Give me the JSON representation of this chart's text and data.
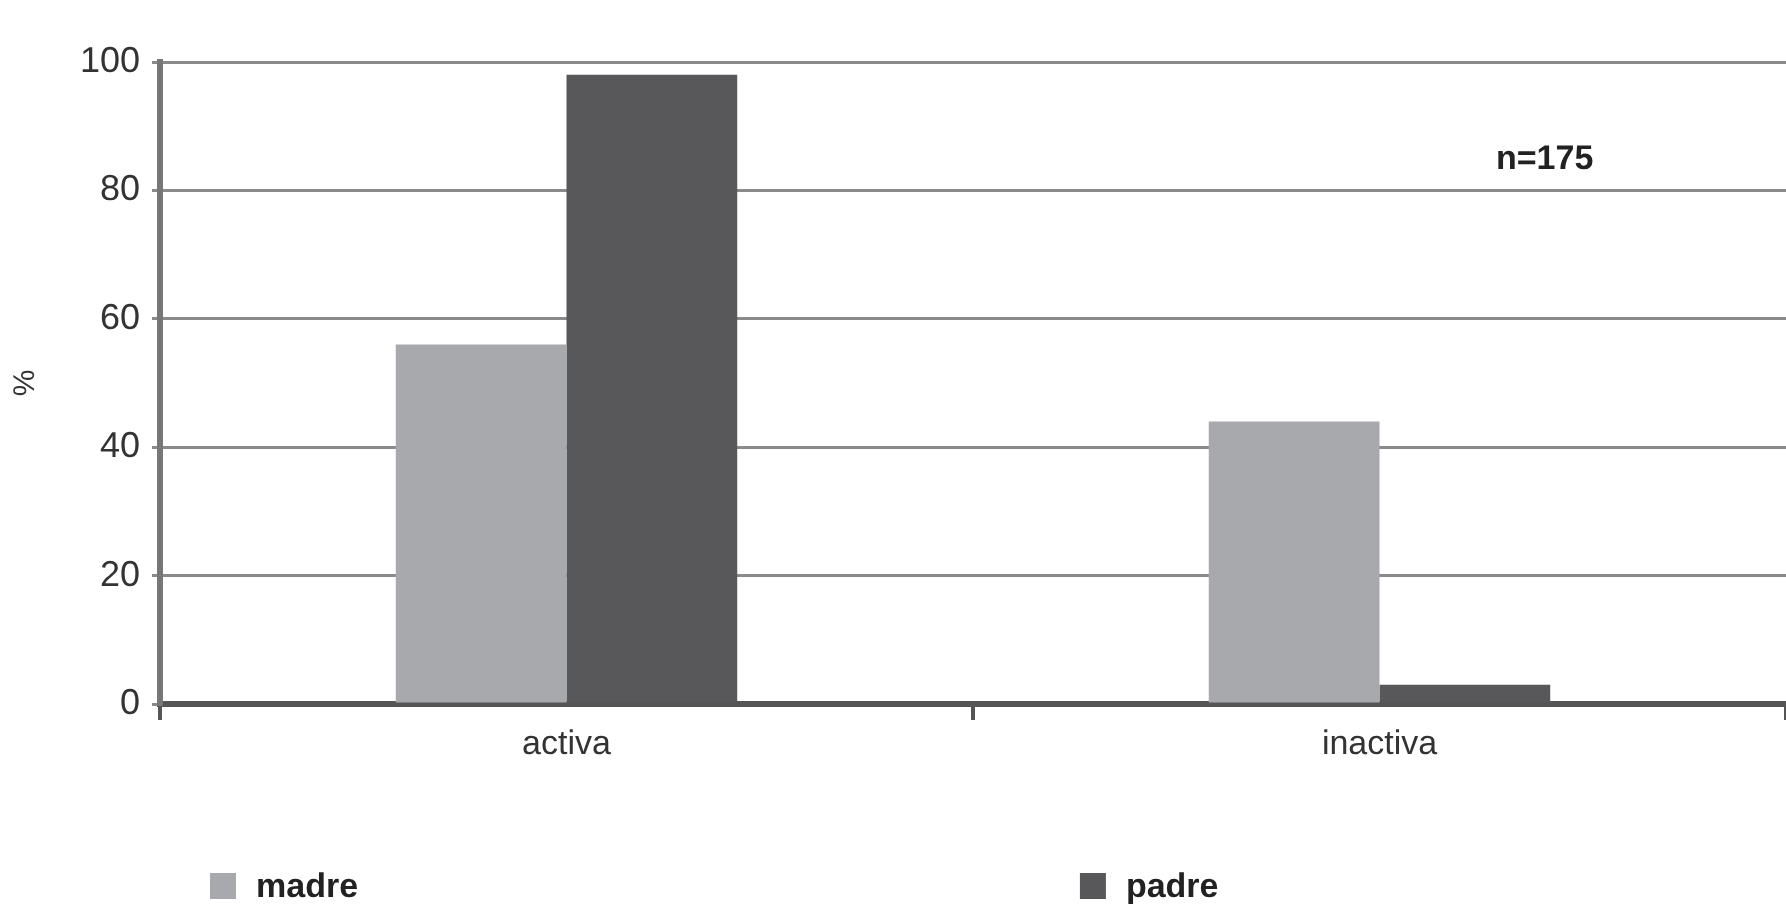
{
  "chart_data": {
    "type": "bar",
    "categories": [
      "activa",
      "inactiva"
    ],
    "series": [
      {
        "name": "madre",
        "color": "#a8a9ad",
        "values": [
          56,
          44
        ]
      },
      {
        "name": "padre",
        "color": "#58585a",
        "values": [
          98,
          3
        ]
      }
    ],
    "ylabel": "%",
    "ylim": [
      0,
      100
    ],
    "yticks": [
      0,
      20,
      40,
      60,
      80,
      100
    ],
    "grid": "y",
    "legend": "bottom",
    "annotations": [
      "n=175"
    ]
  }
}
